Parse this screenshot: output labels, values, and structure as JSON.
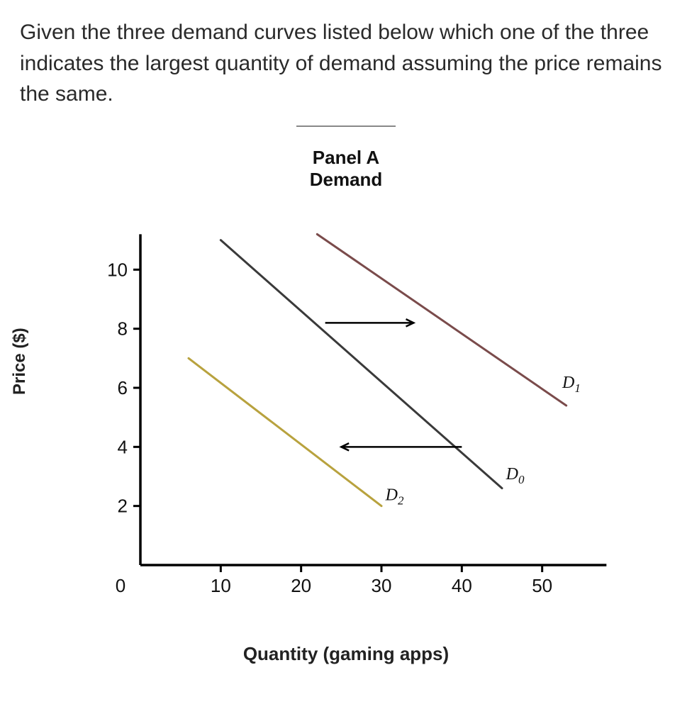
{
  "question_text": "Given the three demand curves listed below which one of the three indicates the largest quantity of demand assuming the price remains the same.",
  "chart": {
    "type": "line",
    "title_line1": "Panel A",
    "title_line2": "Demand",
    "x_axis_label": "Quantity (gaming apps)",
    "y_axis_label": "Price ($)",
    "xlim": [
      0,
      60
    ],
    "ylim": [
      0,
      12
    ],
    "x_ticks": [
      10,
      20,
      30,
      40,
      50
    ],
    "y_ticks": [
      2,
      4,
      6,
      8,
      10
    ],
    "x_tick_labels": [
      "10",
      "20",
      "30",
      "40",
      "50"
    ],
    "y_tick_labels": [
      "2",
      "4",
      "6",
      "8",
      "10"
    ],
    "origin_label": "0",
    "axis_color": "#000000",
    "axis_width": 3.5,
    "tick_length": 10,
    "background_color": "#ffffff",
    "tick_fontsize": 26,
    "title_fontsize": 26,
    "label_fontsize": 26,
    "curve_label_fontsize": 24,
    "line_width": 3.0,
    "arrow_color": "#000000",
    "arrow_width": 2.5,
    "series": {
      "D0": {
        "label": "D",
        "label_sub": "0",
        "color": "#3a3a3a",
        "points": [
          [
            10,
            11
          ],
          [
            45,
            2.6
          ]
        ],
        "label_pos": [
          45.5,
          2.9
        ]
      },
      "D1": {
        "label": "D",
        "label_sub": "1",
        "color": "#7a4b4b",
        "points": [
          [
            22,
            11.2
          ],
          [
            53,
            5.4
          ]
        ],
        "label_pos": [
          52.5,
          6.0
        ]
      },
      "D2": {
        "label": "D",
        "label_sub": "2",
        "color": "#b8a23e",
        "points": [
          [
            6,
            7
          ],
          [
            30,
            2
          ]
        ],
        "label_pos": [
          30.5,
          2.2
        ]
      }
    },
    "arrows": [
      {
        "from": [
          23,
          8.2
        ],
        "to": [
          34,
          8.2
        ]
      },
      {
        "from": [
          40,
          4.0
        ],
        "to": [
          25,
          4.0
        ]
      }
    ]
  }
}
